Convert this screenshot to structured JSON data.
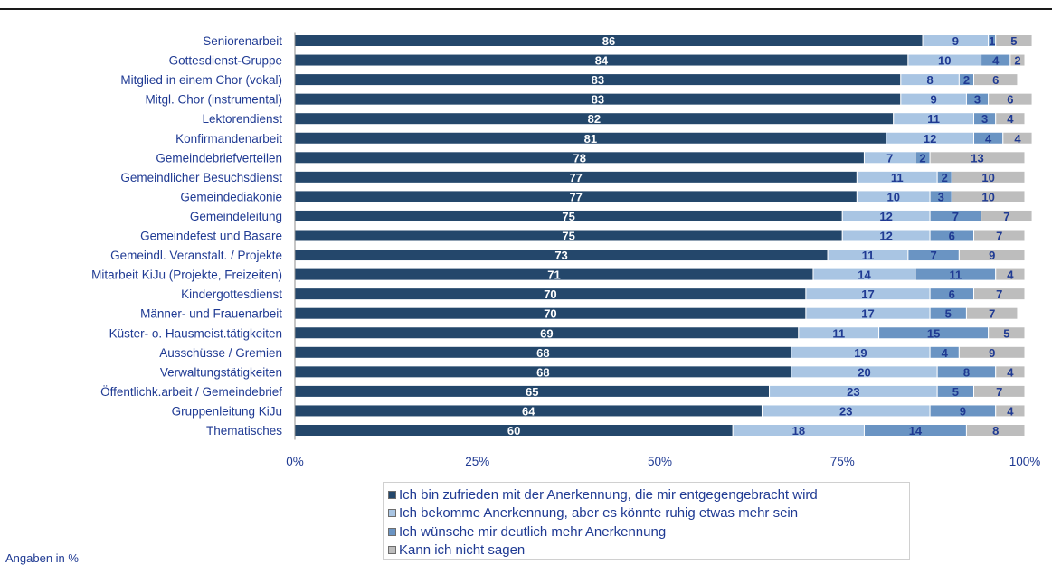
{
  "chart_data": {
    "type": "bar",
    "orientation": "horizontal",
    "stacked": true,
    "categories": [
      "Seniorenarbeit",
      "Gottesdienst-Gruppe",
      "Mitglied in einem Chor (vokal)",
      "Mitgl. Chor (instrumental)",
      "Lektorendienst",
      "Konfirmandenarbeit",
      "Gemeindebriefverteilen",
      "Gemeindlicher Besuchsdienst",
      "Gemeindediakonie",
      "Gemeindeleitung",
      "Gemeindefest und Basare",
      "Gemeindl. Veranstalt. / Projekte",
      "Mitarbeit KiJu (Projekte, Freizeiten)",
      "Kindergottesdienst",
      "Männer- und Frauenarbeit",
      "Küster-  o. Hausmeist.tätigkeiten",
      "Ausschüsse / Gremien",
      "Verwaltungstätigkeiten",
      "Öffentlichk.arbeit / Gemeindebrief",
      "Gruppenleitung KiJu",
      "Thematisches"
    ],
    "series": [
      {
        "name": "Ich bin zufrieden mit der Anerkennung, die mir entgegengebracht wird",
        "color": "#24476b",
        "labelColor": "#ffffff",
        "values": [
          86,
          84,
          83,
          83,
          82,
          81,
          78,
          77,
          77,
          75,
          75,
          73,
          71,
          70,
          70,
          69,
          68,
          68,
          65,
          64,
          60
        ]
      },
      {
        "name": "Ich bekomme Anerkennung, aber es könnte ruhig etwas mehr sein",
        "color": "#a9c5e3",
        "labelColor": "#1f3a93",
        "values": [
          9,
          10,
          8,
          9,
          11,
          12,
          7,
          11,
          10,
          12,
          12,
          11,
          14,
          17,
          17,
          11,
          19,
          20,
          23,
          23,
          18
        ]
      },
      {
        "name": "Ich wünsche mir deutlich mehr Anerkennung",
        "color": "#6a94c3",
        "labelColor": "#1f3a93",
        "values": [
          1,
          4,
          2,
          3,
          3,
          4,
          2,
          2,
          3,
          7,
          6,
          7,
          11,
          6,
          5,
          15,
          4,
          8,
          5,
          9,
          14
        ]
      },
      {
        "name": "Kann ich nicht sagen",
        "color": "#bdbdbd",
        "labelColor": "#1f3a93",
        "values": [
          5,
          2,
          6,
          6,
          4,
          4,
          13,
          10,
          10,
          7,
          7,
          9,
          4,
          7,
          7,
          5,
          9,
          4,
          7,
          4,
          8
        ]
      }
    ],
    "xlim": [
      0,
      100
    ],
    "xticks": [
      "0%",
      "25%",
      "50%",
      "75%",
      "100%"
    ],
    "legend_position": "bottom",
    "note": "Angaben in %"
  }
}
